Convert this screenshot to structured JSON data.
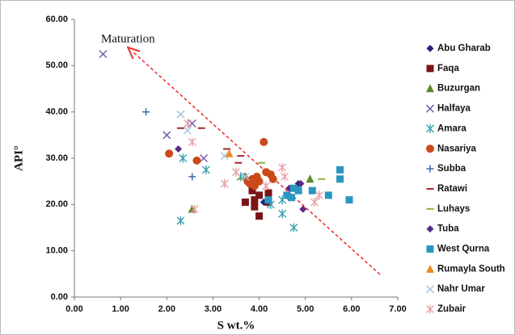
{
  "chart_data": {
    "type": "scatter",
    "annotation": "Maturation",
    "x_label": "S wt.%",
    "y_label": "API°",
    "xlim": [
      0,
      7
    ],
    "ylim": [
      0,
      60
    ],
    "xticks": [
      {
        "value": 0,
        "label": "0.00"
      },
      {
        "value": 1,
        "label": "1.00"
      },
      {
        "value": 2,
        "label": "2.00"
      },
      {
        "value": 3,
        "label": "3.00"
      },
      {
        "value": 4,
        "label": "4.00"
      },
      {
        "value": 5,
        "label": "5.00"
      },
      {
        "value": 6,
        "label": "6.00"
      },
      {
        "value": 7,
        "label": "7.00"
      }
    ],
    "yticks": [
      {
        "value": 0,
        "label": "0.00"
      },
      {
        "value": 10,
        "label": "10.00"
      },
      {
        "value": 20,
        "label": "20.00"
      },
      {
        "value": 30,
        "label": "30.00"
      },
      {
        "value": 40,
        "label": "40.00"
      },
      {
        "value": 50,
        "label": "50.00"
      },
      {
        "value": 60,
        "label": "60.00"
      }
    ],
    "series": [
      {
        "name": "Abu Gharab",
        "color": "#1f2478",
        "marker": "diamond",
        "x": [
          4.85,
          4.65,
          4.1
        ],
        "values": [
          24.5,
          21.5,
          20.5
        ]
      },
      {
        "name": "Faqa",
        "color": "#7b1416",
        "marker": "square",
        "x": [
          3.7,
          3.9,
          3.9,
          4.0,
          4.0,
          4.2,
          4.2,
          3.85
        ],
        "values": [
          20.5,
          19.5,
          21,
          17.5,
          22,
          22.5,
          20.5,
          23
        ]
      },
      {
        "name": "Buzurgan",
        "color": "#5a8a2a",
        "marker": "triangle",
        "x": [
          2.55,
          5.1,
          3.7
        ],
        "values": [
          19,
          25.5,
          26
        ]
      },
      {
        "name": "Halfaya",
        "color": "#7a5ea8",
        "marker": "x",
        "x": [
          0.62,
          2.0,
          2.55,
          2.8
        ],
        "values": [
          52.5,
          35,
          37.5,
          30
        ]
      },
      {
        "name": "Amara",
        "color": "#3aa0b0",
        "marker": "asterisk",
        "x": [
          2.3,
          2.35,
          2.85,
          3.6,
          4.5,
          4.75,
          4.5,
          4.25
        ],
        "values": [
          16.5,
          30,
          27.5,
          26,
          18,
          15,
          21,
          20
        ]
      },
      {
        "name": "Nasariya",
        "color": "#cc4a1a",
        "marker": "circle",
        "x": [
          2.05,
          2.65,
          3.75,
          3.85,
          3.9,
          3.95,
          4.1,
          4.15,
          4.25,
          4.0,
          4.3,
          3.8
        ],
        "values": [
          31,
          29.5,
          25,
          25.5,
          24,
          26,
          33.5,
          27,
          26.5,
          25,
          25.5,
          24.5
        ]
      },
      {
        "name": "Subba",
        "color": "#3a6ab0",
        "marker": "plus",
        "x": [
          1.55,
          2.55
        ],
        "values": [
          40,
          26
        ]
      },
      {
        "name": "Ratawi",
        "color": "#a0282a",
        "marker": "dash",
        "x": [
          2.3,
          2.75,
          3.3,
          3.55,
          3.6
        ],
        "values": [
          36.5,
          36.5,
          32,
          29,
          30.5
        ]
      },
      {
        "name": "Luhays",
        "color": "#8ab040",
        "marker": "dash",
        "x": [
          3.6,
          4.05,
          5.35
        ],
        "values": [
          25.5,
          29,
          25.5
        ]
      },
      {
        "name": "Tuba",
        "color": "#5a2a8a",
        "marker": "diamond",
        "x": [
          2.25,
          4.95,
          4.9,
          4.65
        ],
        "values": [
          32,
          19,
          24.5,
          23.5
        ]
      },
      {
        "name": "West Qurna",
        "color": "#2a96c0",
        "marker": "square",
        "x": [
          4.2,
          4.6,
          4.7,
          4.85,
          5.15,
          5.5,
          5.75,
          5.75,
          5.95,
          4.75
        ],
        "values": [
          21,
          22,
          21.5,
          23,
          23,
          22,
          27.5,
          25.5,
          21,
          23.5
        ]
      },
      {
        "name": "Rumayla South",
        "color": "#f08a20",
        "marker": "triangle",
        "x": [
          3.35
        ],
        "values": [
          31
        ]
      },
      {
        "name": "Nahr Umar",
        "color": "#a8c4e4",
        "marker": "x",
        "x": [
          2.3,
          2.45,
          3.25,
          3.7
        ],
        "values": [
          39.5,
          36,
          30.5,
          26
        ]
      },
      {
        "name": "Zubair",
        "color": "#e8a0a8",
        "marker": "asterisk",
        "x": [
          2.45,
          2.55,
          3.25,
          3.5,
          4.5,
          4.55,
          2.6,
          4.15,
          5.2,
          5.3
        ],
        "values": [
          37.5,
          33.5,
          24.5,
          27,
          28,
          26,
          19,
          24,
          20.5,
          22
        ]
      }
    ]
  }
}
